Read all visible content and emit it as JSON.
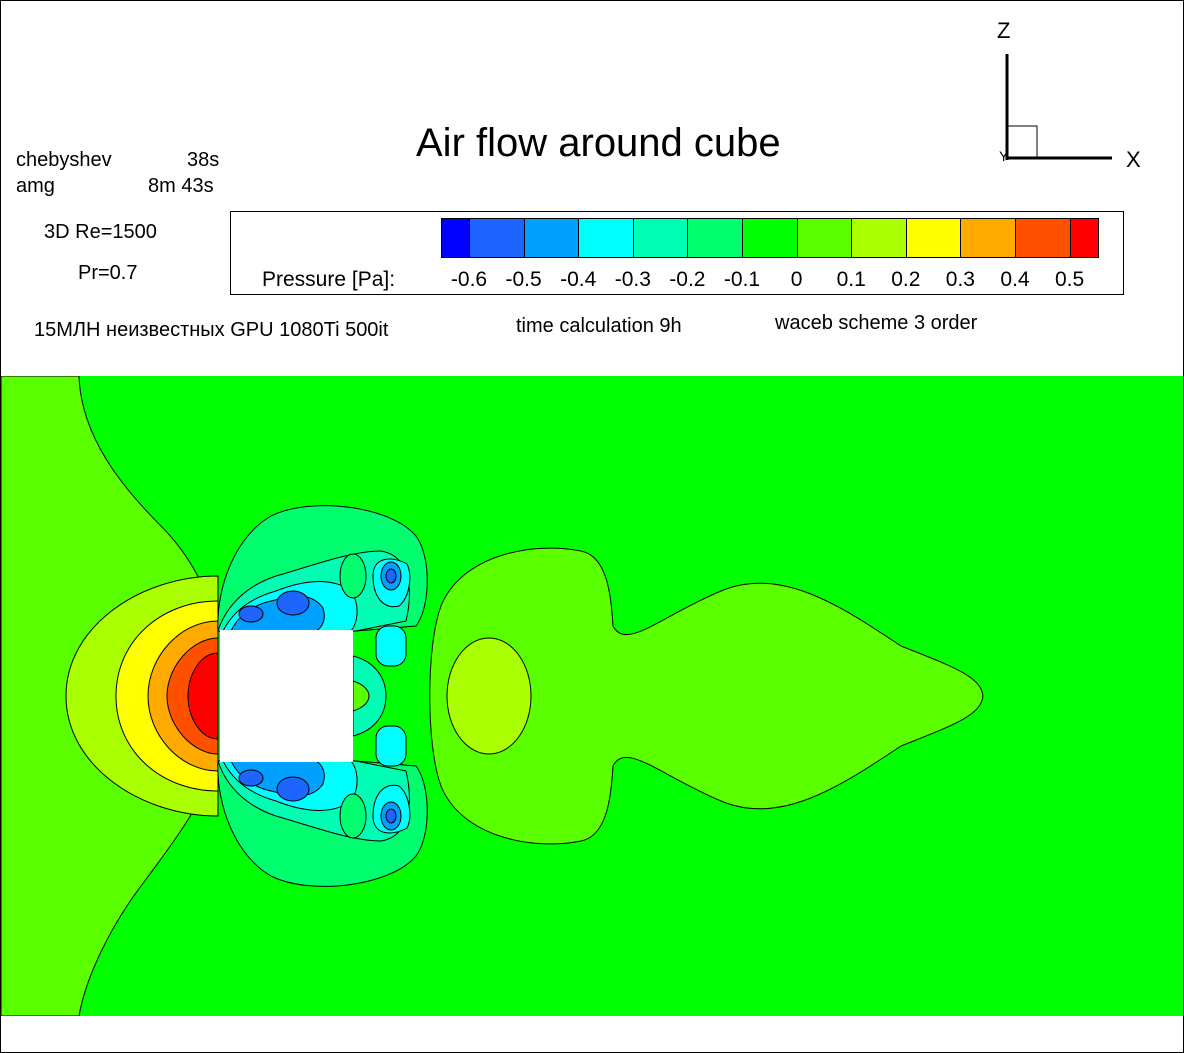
{
  "title": "Air flow around cube",
  "solver_info": {
    "line1_name": "chebyshev",
    "line1_time": "38s",
    "line2_name": "amg",
    "line2_time": "8m 43s"
  },
  "parameters": {
    "re": "3D Re=1500",
    "pr": "Pr=0.7"
  },
  "notes": {
    "mesh": "15МЛН неизвестных GPU 1080Ti 500it",
    "time": "time calculation 9h",
    "scheme": "waceb scheme 3 order"
  },
  "legend": {
    "label": "Pressure [Pa]:",
    "ticks": [
      "-0.6",
      "-0.5",
      "-0.4",
      "-0.3",
      "-0.2",
      "-0.1",
      "0",
      "0.1",
      "0.2",
      "0.3",
      "0.4",
      "0.5"
    ],
    "colors": [
      "#0000ff",
      "#1e64ff",
      "#00a0ff",
      "#00ffff",
      "#00ffb4",
      "#00ff6e",
      "#00ff00",
      "#5aff00",
      "#aaff00",
      "#ffff00",
      "#ffaa00",
      "#ff5000",
      "#ff0000"
    ]
  },
  "axes": {
    "vertical": "Z",
    "horizontal": "X",
    "depth": "Y"
  }
}
